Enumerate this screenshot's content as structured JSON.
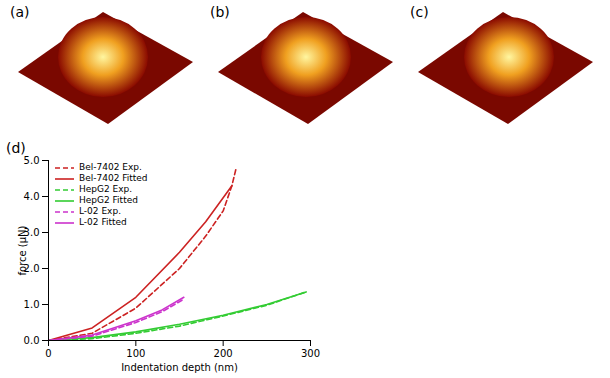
{
  "panel_labels": [
    "(a)",
    "(b)",
    "(c)",
    "(d)"
  ],
  "chart_data": {
    "type": "line",
    "x_label": "Indentation depth (nm)",
    "y_label": "force (µN)",
    "xlim": [
      0,
      300
    ],
    "xticks": [
      0,
      100,
      200,
      300
    ],
    "ylim": [
      0,
      5
    ],
    "yticks": [
      0,
      1,
      2,
      3,
      4,
      5
    ],
    "legend": "top-left",
    "series": [
      {
        "name": "Bel-7402 Exp.",
        "color": "#cc2222",
        "line_style": "dashed",
        "x": [
          0,
          50,
          100,
          150,
          180,
          200,
          210,
          215
        ],
        "values": [
          0,
          0.2,
          0.9,
          2.0,
          2.9,
          3.6,
          4.3,
          4.8
        ]
      },
      {
        "name": "Bel-7402 Fitted",
        "color": "#cc2222",
        "line_style": "solid",
        "x": [
          0,
          50,
          100,
          150,
          180,
          210
        ],
        "values": [
          0,
          0.35,
          1.2,
          2.45,
          3.3,
          4.3
        ]
      },
      {
        "name": "HepG2 Exp.",
        "color": "#33cc33",
        "line_style": "dashed",
        "x": [
          0,
          50,
          100,
          150,
          200,
          250,
          295
        ],
        "values": [
          0,
          0.05,
          0.2,
          0.4,
          0.68,
          0.98,
          1.35
        ]
      },
      {
        "name": "HepG2 Fitted",
        "color": "#33cc33",
        "line_style": "solid",
        "x": [
          0,
          50,
          100,
          150,
          200,
          250,
          295
        ],
        "values": [
          0,
          0.08,
          0.24,
          0.45,
          0.7,
          1.0,
          1.35
        ]
      },
      {
        "name": "L-02 Exp.",
        "color": "#cc33cc",
        "line_style": "dashed",
        "x": [
          0,
          50,
          100,
          130,
          155
        ],
        "values": [
          0,
          0.12,
          0.5,
          0.8,
          1.15
        ]
      },
      {
        "name": "L-02 Fitted",
        "color": "#cc33cc",
        "line_style": "solid",
        "x": [
          0,
          50,
          100,
          130,
          155
        ],
        "values": [
          0,
          0.15,
          0.55,
          0.85,
          1.2
        ]
      }
    ]
  }
}
